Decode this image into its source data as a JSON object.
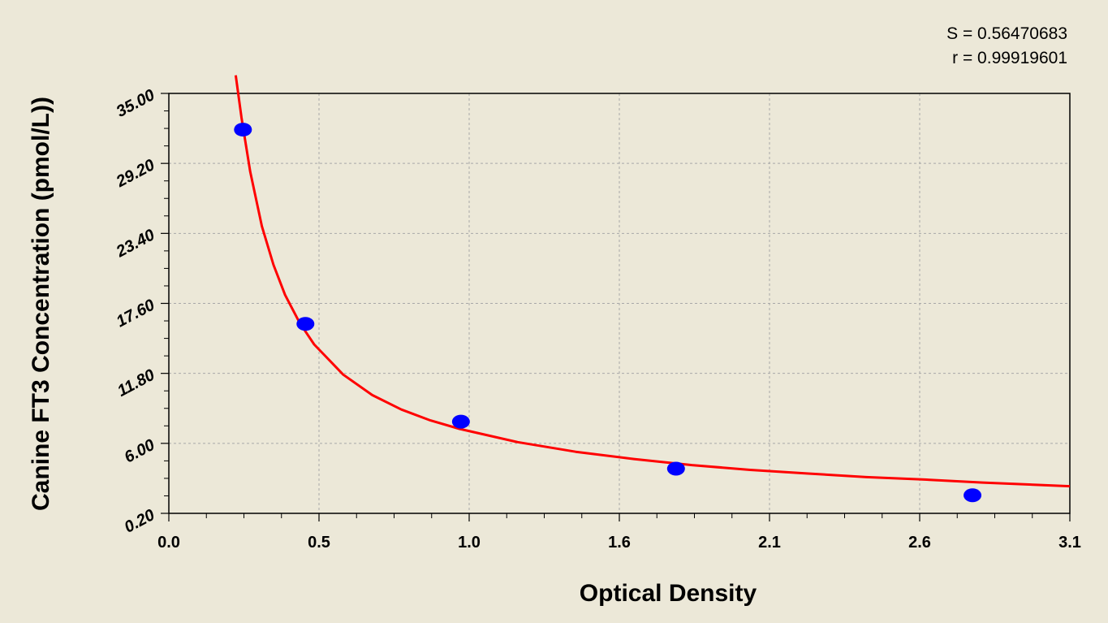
{
  "chart_data": {
    "type": "scatter",
    "title": "",
    "xlabel": "Optical Density",
    "ylabel": "Canine FT3  Concentration (pmol/L))",
    "xlim": [
      0.0,
      3.1
    ],
    "ylim": [
      0.2,
      35.0
    ],
    "x_ticks": [
      "0.0",
      "0.5",
      "1.0",
      "1.6",
      "2.1",
      "2.6",
      "3.1"
    ],
    "y_ticks": [
      "0.20",
      "6.00",
      "11.80",
      "17.60",
      "23.40",
      "29.20",
      "35.00"
    ],
    "grid": true,
    "stats": {
      "s_label": "S = 0.56470683",
      "r_label": "r = 0.99919601"
    },
    "series": [
      {
        "kind": "points",
        "color": "#0000ff",
        "x": [
          0.255,
          0.47,
          1.005,
          1.745,
          2.765
        ],
        "y": [
          32.0,
          15.9,
          7.8,
          3.9,
          1.7
        ]
      },
      {
        "kind": "fit-curve",
        "color": "#ff0000",
        "x": [
          0.23,
          0.25,
          0.28,
          0.32,
          0.36,
          0.4,
          0.45,
          0.5,
          0.6,
          0.7,
          0.8,
          0.9,
          1.0,
          1.2,
          1.4,
          1.6,
          1.8,
          2.0,
          2.2,
          2.4,
          2.6,
          2.8,
          3.0,
          3.1
        ],
        "y": [
          36.5,
          33.0,
          28.5,
          24.0,
          20.8,
          18.3,
          16.0,
          14.2,
          11.7,
          10.0,
          8.8,
          7.9,
          7.2,
          6.1,
          5.3,
          4.7,
          4.2,
          3.8,
          3.5,
          3.2,
          3.0,
          2.75,
          2.55,
          2.45
        ]
      }
    ]
  }
}
